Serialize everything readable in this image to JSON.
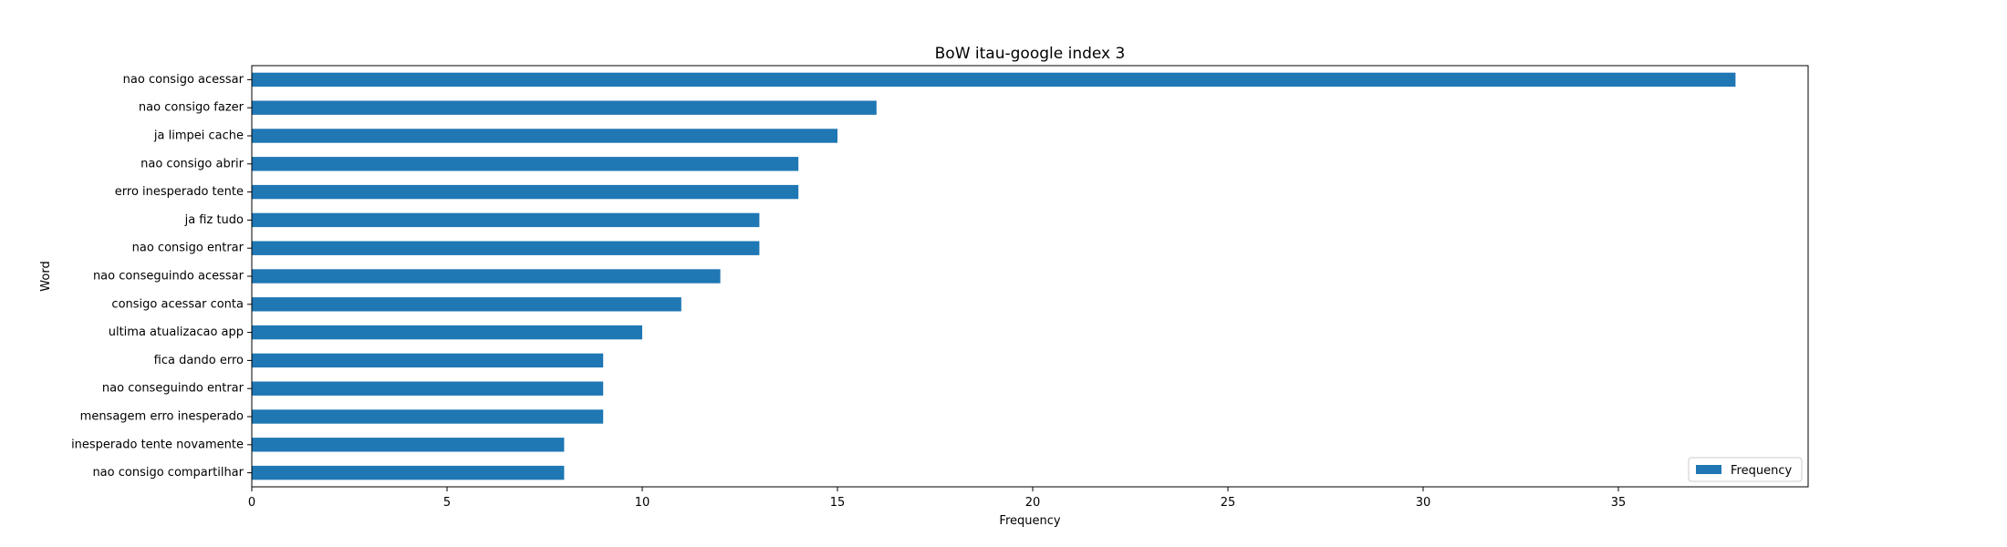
{
  "chart_data": {
    "type": "bar",
    "orientation": "horizontal",
    "title": "BoW itau-google index 3",
    "xlabel": "Frequency",
    "ylabel": "Word",
    "xlim": [
      0,
      40
    ],
    "xticks": [
      0,
      5,
      10,
      15,
      20,
      25,
      30,
      35
    ],
    "bar_color": "#1f77b4",
    "legend": {
      "label": "Frequency",
      "placement": "lower-right"
    },
    "grid": false,
    "categories": [
      "nao consigo acessar",
      "nao consigo fazer",
      "ja limpei cache",
      "nao consigo abrir",
      "erro inesperado tente",
      "ja fiz tudo",
      "nao consigo entrar",
      "nao conseguindo acessar",
      "consigo acessar conta",
      "ultima atualizacao app",
      "fica dando erro",
      "nao conseguindo entrar",
      "mensagem erro inesperado",
      "inesperado tente novamente",
      "nao consigo compartilhar"
    ],
    "values": [
      38,
      16,
      15,
      14,
      14,
      13,
      13,
      12,
      11,
      10,
      9,
      9,
      9,
      8,
      8
    ]
  }
}
